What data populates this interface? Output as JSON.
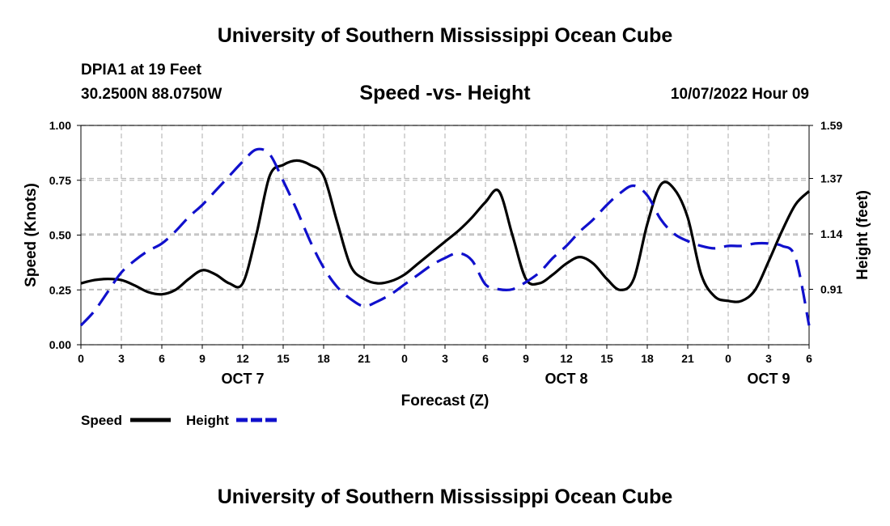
{
  "header": {
    "title_top": "University of Southern Mississippi Ocean Cube",
    "title_bottom": "University of Southern Mississippi Ocean Cube",
    "station": "DPIA1 at 19 Feet",
    "coords": "30.2500N  88.0750W",
    "datetime": "10/07/2022 Hour 09"
  },
  "colors": {
    "speed": "#000000",
    "height": "#1010cc",
    "grid": "#bbbbbb"
  },
  "chart_data": {
    "type": "line",
    "title": "Speed -vs- Height",
    "xlabel": "Forecast (Z)",
    "ylabel": "Speed (Knots)",
    "y2label": "Height (feet)",
    "x_ticks": [
      0,
      3,
      6,
      9,
      12,
      15,
      18,
      21,
      24,
      27,
      30,
      33,
      36,
      39,
      42,
      45,
      48,
      51,
      54
    ],
    "x_tick_labels": [
      "0",
      "3",
      "6",
      "9",
      "12",
      "15",
      "18",
      "21",
      "0",
      "3",
      "6",
      "9",
      "12",
      "15",
      "18",
      "21",
      "0",
      "3",
      "6"
    ],
    "date_labels": [
      {
        "text": "OCT 7",
        "x": 12
      },
      {
        "text": "OCT 8",
        "x": 36
      },
      {
        "text": "OCT 9",
        "x": 51
      }
    ],
    "xlim": [
      0,
      54
    ],
    "ylim": [
      0,
      1.0
    ],
    "y_ticks": [
      0.0,
      0.25,
      0.5,
      0.75,
      1.0
    ],
    "y_tick_labels": [
      "0.00",
      "0.25",
      "0.50",
      "0.75",
      "1.00"
    ],
    "y2lim": [
      0.68,
      1.59
    ],
    "y2_ticks": [
      0.91,
      1.14,
      1.37,
      1.59
    ],
    "y2_tick_labels": [
      "0.91",
      "1.14",
      "1.37",
      "1.59"
    ],
    "series": [
      {
        "name": "Speed",
        "axis": "left",
        "style": "solid",
        "x": [
          0,
          1,
          2,
          3,
          4,
          5,
          6,
          7,
          8,
          9,
          10,
          11,
          12,
          13,
          14,
          15,
          16,
          17,
          18,
          19,
          20,
          21,
          22,
          23,
          24,
          25,
          26,
          27,
          28,
          29,
          30,
          31,
          32,
          33,
          34,
          35,
          36,
          37,
          38,
          39,
          40,
          41,
          42,
          43,
          44,
          45,
          46,
          47,
          48,
          49,
          50,
          51,
          52,
          53,
          54
        ],
        "values": [
          0.28,
          0.295,
          0.3,
          0.295,
          0.27,
          0.24,
          0.23,
          0.25,
          0.3,
          0.34,
          0.32,
          0.28,
          0.28,
          0.5,
          0.77,
          0.82,
          0.84,
          0.82,
          0.77,
          0.56,
          0.36,
          0.3,
          0.28,
          0.29,
          0.32,
          0.37,
          0.42,
          0.47,
          0.52,
          0.58,
          0.65,
          0.7,
          0.5,
          0.3,
          0.28,
          0.32,
          0.37,
          0.4,
          0.37,
          0.3,
          0.25,
          0.3,
          0.55,
          0.73,
          0.71,
          0.58,
          0.32,
          0.22,
          0.2,
          0.2,
          0.25,
          0.38,
          0.52,
          0.64,
          0.7
        ]
      },
      {
        "name": "Height",
        "axis": "right",
        "style": "dashed",
        "x": [
          0,
          1,
          2,
          3,
          4,
          5,
          6,
          7,
          8,
          9,
          10,
          11,
          12,
          13,
          14,
          15,
          16,
          17,
          18,
          19,
          20,
          21,
          22,
          23,
          24,
          25,
          26,
          27,
          28,
          29,
          30,
          31,
          32,
          33,
          34,
          35,
          36,
          37,
          38,
          39,
          40,
          41,
          42,
          43,
          44,
          45,
          46,
          47,
          48,
          49,
          50,
          51,
          52,
          53,
          54
        ],
        "values": [
          0.76,
          0.82,
          0.9,
          0.98,
          1.03,
          1.07,
          1.1,
          1.15,
          1.21,
          1.26,
          1.32,
          1.38,
          1.44,
          1.49,
          1.47,
          1.36,
          1.24,
          1.11,
          1.0,
          0.92,
          0.87,
          0.84,
          0.86,
          0.89,
          0.93,
          0.97,
          1.01,
          1.04,
          1.06,
          1.03,
          0.93,
          0.91,
          0.91,
          0.94,
          0.98,
          1.04,
          1.09,
          1.15,
          1.2,
          1.26,
          1.31,
          1.34,
          1.3,
          1.2,
          1.14,
          1.11,
          1.09,
          1.08,
          1.09,
          1.09,
          1.1,
          1.1,
          1.09,
          1.04,
          0.76
        ]
      }
    ],
    "legend": [
      {
        "label": "Speed",
        "style": "solid"
      },
      {
        "label": "Height",
        "style": "dashed"
      }
    ],
    "legend_position": "bottom-left",
    "grid": true
  }
}
